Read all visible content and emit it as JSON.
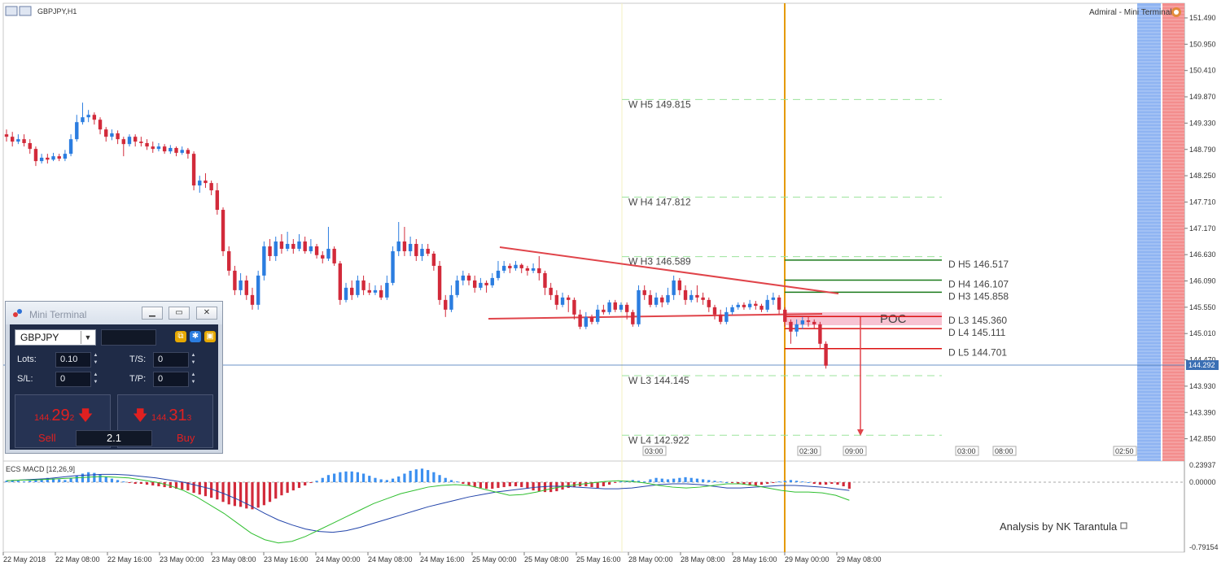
{
  "symbol_timeframe": "GBPJPY,H1",
  "broker_label": "Admiral - Mini Terminal",
  "macd_label": "ECS MACD [12,26,9]",
  "price_axis": [
    "151.490",
    "150.950",
    "150.410",
    "149.870",
    "149.330",
    "148.790",
    "148.250",
    "147.710",
    "147.170",
    "146.630",
    "146.090",
    "145.550",
    "145.010",
    "144.470",
    "143.930",
    "143.390",
    "142.850"
  ],
  "current_price": "144.292",
  "macd_axis": [
    "0.23937",
    "0.00000",
    "-0.79154"
  ],
  "time_axis": [
    "22 May 2018",
    "22 May 08:00",
    "22 May 16:00",
    "23 May 00:00",
    "23 May 08:00",
    "23 May 16:00",
    "24 May 00:00",
    "24 May 08:00",
    "24 May 16:00",
    "25 May 00:00",
    "25 May 08:00",
    "25 May 16:00",
    "28 May 00:00",
    "28 May 08:00",
    "28 May 16:00",
    "29 May 00:00",
    "29 May 08:00"
  ],
  "session_markers": [
    "03:00",
    "02:30",
    "09:00",
    "03:00",
    "08:00",
    "02:50"
  ],
  "weekly_levels": [
    {
      "label": "W  H5 149.815",
      "value": 149.815
    },
    {
      "label": "W  H4 147.812",
      "value": 147.812
    },
    {
      "label": "W  H3 146.589",
      "value": 146.589
    },
    {
      "label": "W  L3 144.145",
      "value": 144.145
    },
    {
      "label": "W  L4 142.922",
      "value": 142.922
    }
  ],
  "daily_levels": [
    {
      "label": "D  H5 146.517",
      "value": 146.517,
      "color": "#1a7a1a"
    },
    {
      "label": "D  H4 146.107",
      "value": 146.107,
      "color": "#1a7a1a"
    },
    {
      "label": "D  H3 145.858",
      "value": 145.858,
      "color": "#1a7a1a"
    },
    {
      "label": "D  L3 145.360",
      "value": 145.36,
      "color": "#dd1111"
    },
    {
      "label": "D  L4 145.111",
      "value": 145.111,
      "color": "#dd1111"
    },
    {
      "label": "D  L5 144.701",
      "value": 144.701,
      "color": "#dd1111"
    }
  ],
  "poc_label": "POC",
  "analysis_text": "Analysis by NK Tarantula",
  "colors": {
    "bull": "#2b7de0",
    "bear": "#d22a3a",
    "poc_zone": "#f7c3d2",
    "vline": "#e59a00",
    "signal": "#2fbf2f",
    "macd_line": "#2244aa"
  },
  "mini_terminal": {
    "title": "Mini Terminal",
    "symbol": "GBPJPY",
    "lots_label": "Lots:",
    "lots_value": "0.10",
    "ts_label": "T/S:",
    "ts_value": "0",
    "sl_label": "S/L:",
    "sl_value": "0",
    "tp_label": "T/P:",
    "tp_value": "0",
    "sell": {
      "prefix": "144.",
      "big": "29",
      "sup": "2",
      "label": "Sell"
    },
    "buy": {
      "prefix": "144.",
      "big": "31",
      "sup": "3",
      "label": "Buy"
    },
    "spread": "2.1"
  },
  "chart_data": {
    "type": "candlestick",
    "title": "GBPJPY,H1",
    "ylim": [
      142.6,
      151.7
    ],
    "candles": [
      [
        149.1,
        149.05,
        149.2,
        148.95
      ],
      [
        149.05,
        148.95,
        149.15,
        148.85
      ],
      [
        148.95,
        149.0,
        149.1,
        148.9
      ],
      [
        149.0,
        148.92,
        149.1,
        148.85
      ],
      [
        148.92,
        148.8,
        149.0,
        148.7
      ],
      [
        148.8,
        148.55,
        148.85,
        148.45
      ],
      [
        148.55,
        148.62,
        148.7,
        148.5
      ],
      [
        148.62,
        148.58,
        148.7,
        148.5
      ],
      [
        148.58,
        148.65,
        148.72,
        148.55
      ],
      [
        148.65,
        148.6,
        148.7,
        148.55
      ],
      [
        148.6,
        148.7,
        148.78,
        148.55
      ],
      [
        148.7,
        149.0,
        149.1,
        148.65
      ],
      [
        149.0,
        149.35,
        149.5,
        148.95
      ],
      [
        149.35,
        149.45,
        149.75,
        149.3
      ],
      [
        149.45,
        149.5,
        149.6,
        149.35
      ],
      [
        149.5,
        149.4,
        149.55,
        149.3
      ],
      [
        149.4,
        149.2,
        149.45,
        149.1
      ],
      [
        149.2,
        149.05,
        149.25,
        148.95
      ],
      [
        149.05,
        149.12,
        149.2,
        148.98
      ],
      [
        149.12,
        149.0,
        149.18,
        148.9
      ],
      [
        149.0,
        148.9,
        149.05,
        148.65
      ],
      [
        148.9,
        149.05,
        149.1,
        148.85
      ],
      [
        149.05,
        148.95,
        149.1,
        148.85
      ],
      [
        148.95,
        148.92,
        149.05,
        148.85
      ],
      [
        148.92,
        148.85,
        149.0,
        148.78
      ],
      [
        148.85,
        148.8,
        148.95,
        148.72
      ],
      [
        148.8,
        148.85,
        148.92,
        148.75
      ],
      [
        148.85,
        148.75,
        148.9,
        148.7
      ],
      [
        148.75,
        148.82,
        148.88,
        148.7
      ],
      [
        148.82,
        148.72,
        148.85,
        148.65
      ],
      [
        148.72,
        148.78,
        148.85,
        148.68
      ],
      [
        148.78,
        148.7,
        148.82,
        148.6
      ],
      [
        148.7,
        148.05,
        148.75,
        147.95
      ],
      [
        148.05,
        148.15,
        148.25,
        147.9
      ],
      [
        148.15,
        148.1,
        148.3,
        148.0
      ],
      [
        148.1,
        147.95,
        148.15,
        147.85
      ],
      [
        147.95,
        147.55,
        148.1,
        147.45
      ],
      [
        147.55,
        146.7,
        147.6,
        146.6
      ],
      [
        146.7,
        146.3,
        146.8,
        146.2
      ],
      [
        146.3,
        145.9,
        146.4,
        145.8
      ],
      [
        145.9,
        146.1,
        146.25,
        145.8
      ],
      [
        146.1,
        145.8,
        146.2,
        145.7
      ],
      [
        145.8,
        145.6,
        145.95,
        145.5
      ],
      [
        145.6,
        146.2,
        146.3,
        145.5
      ],
      [
        146.2,
        146.8,
        146.9,
        146.1
      ],
      [
        146.8,
        146.6,
        146.95,
        146.5
      ],
      [
        146.6,
        146.9,
        147.0,
        146.5
      ],
      [
        146.9,
        146.75,
        147.05,
        146.65
      ],
      [
        146.75,
        146.85,
        147.1,
        146.7
      ],
      [
        146.85,
        146.75,
        146.95,
        146.65
      ],
      [
        146.75,
        146.9,
        147.05,
        146.7
      ],
      [
        146.9,
        146.7,
        147.0,
        146.65
      ],
      [
        146.7,
        146.8,
        146.95,
        146.65
      ],
      [
        146.8,
        146.62,
        146.85,
        146.55
      ],
      [
        146.62,
        146.55,
        146.7,
        146.45
      ],
      [
        146.55,
        146.75,
        147.2,
        146.5
      ],
      [
        146.75,
        146.45,
        146.8,
        146.4
      ],
      [
        146.45,
        145.7,
        146.5,
        145.6
      ],
      [
        145.7,
        145.95,
        146.05,
        145.65
      ],
      [
        145.95,
        145.8,
        146.1,
        145.7
      ],
      [
        145.8,
        146.1,
        146.2,
        145.75
      ],
      [
        146.1,
        145.9,
        146.2,
        145.8
      ],
      [
        145.9,
        145.85,
        146.05,
        145.8
      ],
      [
        145.85,
        145.9,
        146.0,
        145.8
      ],
      [
        145.9,
        145.75,
        146.0,
        145.7
      ],
      [
        145.75,
        146.05,
        146.2,
        145.7
      ],
      [
        146.05,
        146.7,
        146.8,
        146.0
      ],
      [
        146.7,
        146.9,
        147.3,
        146.6
      ],
      [
        146.9,
        146.7,
        147.2,
        146.6
      ],
      [
        146.7,
        146.85,
        147.0,
        146.6
      ],
      [
        146.85,
        146.6,
        146.95,
        146.5
      ],
      [
        146.6,
        146.75,
        146.85,
        146.5
      ],
      [
        146.75,
        146.65,
        146.85,
        146.6
      ],
      [
        146.65,
        146.4,
        146.7,
        146.3
      ],
      [
        146.4,
        145.7,
        146.5,
        145.6
      ],
      [
        145.7,
        145.5,
        145.8,
        145.35
      ],
      [
        145.5,
        145.8,
        146.0,
        145.45
      ],
      [
        145.8,
        146.1,
        146.2,
        145.75
      ],
      [
        146.1,
        146.2,
        146.3,
        146.0
      ],
      [
        146.2,
        146.1,
        146.25,
        146.0
      ],
      [
        146.1,
        145.95,
        146.2,
        145.85
      ],
      [
        145.95,
        146.05,
        146.15,
        145.9
      ],
      [
        146.05,
        146.0,
        146.1,
        145.85
      ],
      [
        146.0,
        146.15,
        146.25,
        145.95
      ],
      [
        146.15,
        146.3,
        146.5,
        146.1
      ],
      [
        146.3,
        146.4,
        146.5,
        146.25
      ],
      [
        146.4,
        146.35,
        146.45,
        146.25
      ],
      [
        146.35,
        146.42,
        146.5,
        146.3
      ],
      [
        146.42,
        146.35,
        146.45,
        146.25
      ],
      [
        146.35,
        146.3,
        146.4,
        146.2
      ],
      [
        146.3,
        146.35,
        146.45,
        146.25
      ],
      [
        146.35,
        146.25,
        146.6,
        146.1
      ],
      [
        146.25,
        145.95,
        146.3,
        145.8
      ],
      [
        145.95,
        145.8,
        146.05,
        145.7
      ],
      [
        145.8,
        145.6,
        145.9,
        145.5
      ],
      [
        145.6,
        145.75,
        145.85,
        145.55
      ],
      [
        145.75,
        145.7,
        145.8,
        145.45
      ],
      [
        145.7,
        145.4,
        145.75,
        145.3
      ],
      [
        145.4,
        145.15,
        145.5,
        145.1
      ],
      [
        145.15,
        145.35,
        145.45,
        145.1
      ],
      [
        145.35,
        145.25,
        145.4,
        145.2
      ],
      [
        145.25,
        145.5,
        145.6,
        145.2
      ],
      [
        145.5,
        145.45,
        145.6,
        145.4
      ],
      [
        145.45,
        145.65,
        145.7,
        145.4
      ],
      [
        145.65,
        145.5,
        145.7,
        145.45
      ],
      [
        145.5,
        145.6,
        145.65,
        145.45
      ],
      [
        145.6,
        145.45,
        145.65,
        145.3
      ],
      [
        145.45,
        145.2,
        145.5,
        145.15
      ],
      [
        145.2,
        145.9,
        146.0,
        145.15
      ],
      [
        145.9,
        145.8,
        146.0,
        145.7
      ],
      [
        145.8,
        145.6,
        145.9,
        145.55
      ],
      [
        145.6,
        145.75,
        145.85,
        145.55
      ],
      [
        145.75,
        145.65,
        145.8,
        145.55
      ],
      [
        145.65,
        145.8,
        145.95,
        145.6
      ],
      [
        145.8,
        146.1,
        146.2,
        145.7
      ],
      [
        146.1,
        145.9,
        146.15,
        145.8
      ],
      [
        145.9,
        145.7,
        146.0,
        145.6
      ],
      [
        145.7,
        145.8,
        145.9,
        145.65
      ],
      [
        145.8,
        145.75,
        146.0,
        145.65
      ],
      [
        145.75,
        145.7,
        145.85,
        145.6
      ],
      [
        145.7,
        145.55,
        145.75,
        145.45
      ],
      [
        145.55,
        145.4,
        145.6,
        145.3
      ],
      [
        145.4,
        145.25,
        145.5,
        145.2
      ],
      [
        145.25,
        145.45,
        145.55,
        145.2
      ],
      [
        145.45,
        145.55,
        145.6,
        145.4
      ],
      [
        145.55,
        145.6,
        145.65,
        145.5
      ],
      [
        145.6,
        145.55,
        145.65,
        145.5
      ],
      [
        145.55,
        145.62,
        145.7,
        145.5
      ],
      [
        145.62,
        145.58,
        145.68,
        145.5
      ],
      [
        145.58,
        145.5,
        145.62,
        145.45
      ],
      [
        145.5,
        145.7,
        145.8,
        145.45
      ],
      [
        145.7,
        145.75,
        145.85,
        145.6
      ],
      [
        145.75,
        145.5,
        145.8,
        145.4
      ],
      [
        145.5,
        145.25,
        145.55,
        145.15
      ],
      [
        145.25,
        145.05,
        145.3,
        144.8
      ],
      [
        145.05,
        145.2,
        145.3,
        144.95
      ],
      [
        145.2,
        145.28,
        145.35,
        145.1
      ],
      [
        145.28,
        145.25,
        145.35,
        145.15
      ],
      [
        145.25,
        145.2,
        145.3,
        145.1
      ],
      [
        145.2,
        144.8,
        145.25,
        144.7
      ],
      [
        144.8,
        144.35,
        144.85,
        144.29
      ]
    ],
    "macd_hist": [
      0.02,
      0.03,
      0.02,
      0.01,
      0.02,
      0.04,
      0.05,
      0.06,
      0.05,
      0.04,
      0.03,
      0.06,
      0.09,
      0.12,
      0.14,
      0.13,
      0.11,
      0.08,
      0.05,
      0.03,
      0.01,
      -0.01,
      -0.02,
      -0.02,
      -0.03,
      -0.04,
      -0.05,
      -0.06,
      -0.07,
      -0.08,
      -0.09,
      -0.1,
      -0.13,
      -0.15,
      -0.17,
      -0.19,
      -0.21,
      -0.24,
      -0.27,
      -0.29,
      -0.3,
      -0.32,
      -0.33,
      -0.31,
      -0.28,
      -0.24,
      -0.2,
      -0.16,
      -0.13,
      -0.1,
      -0.07,
      -0.04,
      -0.01,
      0.02,
      0.06,
      0.1,
      0.12,
      0.14,
      0.15,
      0.15,
      0.14,
      0.12,
      0.09,
      0.06,
      0.04,
      0.03,
      0.05,
      0.08,
      0.12,
      0.16,
      0.18,
      0.19,
      0.17,
      0.14,
      0.1,
      0.06,
      0.03,
      0.01,
      -0.02,
      -0.04,
      -0.06,
      -0.07,
      -0.08,
      -0.08,
      -0.07,
      -0.06,
      -0.05,
      -0.05,
      -0.06,
      -0.08,
      -0.1,
      -0.11,
      -0.12,
      -0.12,
      -0.11,
      -0.09,
      -0.07,
      -0.06,
      -0.05,
      -0.05,
      -0.06,
      -0.07,
      -0.05,
      -0.03,
      -0.01,
      0.01,
      0.02,
      0.03,
      0.02,
      0.01,
      0.04,
      0.06,
      0.05,
      0.04,
      0.05,
      0.06,
      0.07,
      0.06,
      0.05,
      0.04,
      0.03,
      0.02,
      0.01,
      0.0,
      -0.01,
      -0.02,
      -0.03,
      -0.04,
      -0.04,
      -0.03,
      -0.02,
      -0.01,
      0.01,
      0.02,
      0.03,
      0.02,
      0.01,
      0.0,
      -0.02,
      -0.03,
      -0.03,
      -0.02,
      -0.03,
      -0.05,
      -0.08
    ],
    "macd_line": [
      0.02,
      0.03,
      0.04,
      0.05,
      0.07,
      0.09,
      0.1,
      0.11,
      0.11,
      0.1,
      0.08,
      0.06,
      0.03,
      0.0,
      -0.04,
      -0.08,
      -0.14,
      -0.21,
      -0.29,
      -0.38,
      -0.46,
      -0.52,
      -0.57,
      -0.6,
      -0.61,
      -0.59,
      -0.55,
      -0.5,
      -0.45,
      -0.4,
      -0.35,
      -0.3,
      -0.26,
      -0.22,
      -0.18,
      -0.15,
      -0.12,
      -0.1,
      -0.08,
      -0.06,
      -0.05,
      -0.05,
      -0.06,
      -0.07,
      -0.08,
      -0.08,
      -0.07,
      -0.05,
      -0.03,
      -0.02,
      -0.02,
      -0.03,
      -0.05,
      -0.07,
      -0.07,
      -0.06,
      -0.05,
      -0.04,
      -0.04,
      -0.05,
      -0.06,
      -0.08,
      -0.1
    ],
    "signal_line": [
      0.02,
      0.03,
      0.03,
      0.04,
      0.05,
      0.06,
      0.07,
      0.08,
      0.07,
      0.06,
      0.03,
      0.0,
      -0.04,
      -0.1,
      -0.18,
      -0.28,
      -0.38,
      -0.5,
      -0.62,
      -0.7,
      -0.74,
      -0.72,
      -0.66,
      -0.58,
      -0.5,
      -0.42,
      -0.34,
      -0.26,
      -0.2,
      -0.14,
      -0.1,
      -0.06,
      -0.04,
      -0.03,
      -0.04,
      -0.08,
      -0.12,
      -0.16,
      -0.15,
      -0.12,
      -0.08,
      -0.05,
      -0.03,
      -0.01,
      0.01,
      0.02,
      0.01,
      -0.01,
      -0.04,
      -0.06,
      -0.07,
      -0.06,
      -0.04,
      -0.02,
      -0.02,
      -0.04,
      -0.07,
      -0.1,
      -0.12,
      -0.12,
      -0.13,
      -0.16,
      -0.22
    ],
    "macd_ylim": [
      -0.79154,
      0.23937
    ]
  }
}
